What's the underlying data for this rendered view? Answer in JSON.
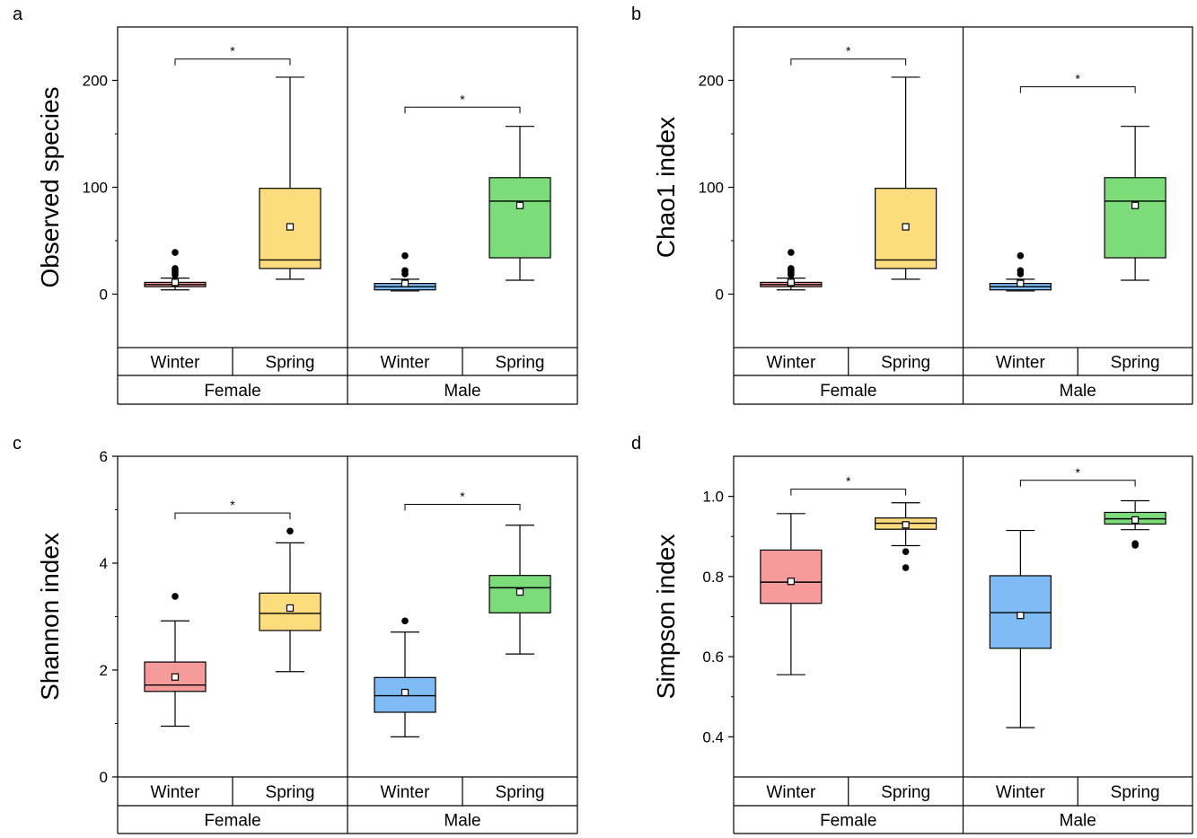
{
  "colors": {
    "female_winter": "#f79a9a",
    "female_spring": "#fddc7e",
    "male_winter": "#7fbcf6",
    "male_spring": "#7ddc7a",
    "line": "#000000"
  },
  "chart_data": [
    {
      "panel": "a",
      "type": "box",
      "ylabel": "Observed species",
      "ylim": [
        -50,
        250
      ],
      "yticks": [
        "0",
        "100",
        "200"
      ],
      "ytick_values": [
        0,
        100,
        200
      ],
      "groups": [
        "Female",
        "Male"
      ],
      "categories": [
        "Winter",
        "Spring",
        "Winter",
        "Spring"
      ],
      "boxes": [
        {
          "group": "Female",
          "season": "Winter",
          "color": "female_winter",
          "min": 4,
          "q1": 7,
          "median": 9,
          "q3": 11,
          "max": 15,
          "mean": 11,
          "outliers": [
            18,
            20,
            22,
            24,
            39
          ]
        },
        {
          "group": "Female",
          "season": "Spring",
          "color": "female_spring",
          "min": 14,
          "q1": 24,
          "median": 32,
          "q3": 99,
          "max": 203,
          "mean": 63,
          "outliers": []
        },
        {
          "group": "Male",
          "season": "Winter",
          "color": "male_winter",
          "min": 3,
          "q1": 4,
          "median": 7,
          "q3": 10,
          "max": 14,
          "mean": 10,
          "outliers": [
            19,
            22,
            36
          ]
        },
        {
          "group": "Male",
          "season": "Spring",
          "color": "male_spring",
          "min": 13,
          "q1": 34,
          "median": 87,
          "q3": 109,
          "max": 157,
          "mean": 83,
          "outliers": []
        }
      ],
      "significance": [
        {
          "from": 0,
          "to": 1,
          "y": 220,
          "label": "*"
        },
        {
          "from": 2,
          "to": 3,
          "y": 175,
          "label": "*"
        }
      ]
    },
    {
      "panel": "b",
      "type": "box",
      "ylabel": "Chao1 index",
      "ylim": [
        -50,
        250
      ],
      "yticks": [
        "0",
        "100",
        "200"
      ],
      "ytick_values": [
        0,
        100,
        200
      ],
      "groups": [
        "Female",
        "Male"
      ],
      "categories": [
        "Winter",
        "Spring",
        "Winter",
        "Spring"
      ],
      "boxes": [
        {
          "group": "Female",
          "season": "Winter",
          "color": "female_winter",
          "min": 4,
          "q1": 7,
          "median": 9,
          "q3": 11,
          "max": 15,
          "mean": 11,
          "outliers": [
            18,
            20,
            22,
            24,
            39
          ]
        },
        {
          "group": "Female",
          "season": "Spring",
          "color": "female_spring",
          "min": 14,
          "q1": 24,
          "median": 32,
          "q3": 99,
          "max": 203,
          "mean": 63,
          "outliers": []
        },
        {
          "group": "Male",
          "season": "Winter",
          "color": "male_winter",
          "min": 3,
          "q1": 4,
          "median": 7,
          "q3": 10,
          "max": 14,
          "mean": 10,
          "outliers": [
            19,
            22,
            36
          ]
        },
        {
          "group": "Male",
          "season": "Spring",
          "color": "male_spring",
          "min": 13,
          "q1": 34,
          "median": 87,
          "q3": 109,
          "max": 157,
          "mean": 83,
          "outliers": []
        }
      ],
      "significance": [
        {
          "from": 0,
          "to": 1,
          "y": 220,
          "label": "*"
        },
        {
          "from": 2,
          "to": 3,
          "y": 194,
          "label": "*"
        }
      ]
    },
    {
      "panel": "c",
      "type": "box",
      "ylabel": "Shannon index",
      "ylim": [
        0,
        6
      ],
      "yticks": [
        "0",
        "2",
        "4",
        "6"
      ],
      "ytick_values": [
        0,
        2,
        4,
        6
      ],
      "groups": [
        "Female",
        "Male"
      ],
      "categories": [
        "Winter",
        "Spring",
        "Winter",
        "Spring"
      ],
      "boxes": [
        {
          "group": "Female",
          "season": "Winter",
          "color": "female_winter",
          "min": 0.95,
          "q1": 1.6,
          "median": 1.72,
          "q3": 2.15,
          "max": 2.92,
          "mean": 1.87,
          "outliers": [
            3.38
          ]
        },
        {
          "group": "Female",
          "season": "Spring",
          "color": "female_spring",
          "min": 1.97,
          "q1": 2.74,
          "median": 3.06,
          "q3": 3.44,
          "max": 4.38,
          "mean": 3.16,
          "outliers": [
            4.6
          ]
        },
        {
          "group": "Male",
          "season": "Winter",
          "color": "male_winter",
          "min": 0.75,
          "q1": 1.21,
          "median": 1.52,
          "q3": 1.86,
          "max": 2.71,
          "mean": 1.58,
          "outliers": [
            2.92
          ]
        },
        {
          "group": "Male",
          "season": "Spring",
          "color": "male_spring",
          "min": 2.3,
          "q1": 3.07,
          "median": 3.54,
          "q3": 3.77,
          "max": 4.71,
          "mean": 3.46,
          "outliers": []
        }
      ],
      "significance": [
        {
          "from": 0,
          "to": 1,
          "y": 4.94,
          "label": "*"
        },
        {
          "from": 2,
          "to": 3,
          "y": 5.1,
          "label": "*"
        }
      ]
    },
    {
      "panel": "d",
      "type": "box",
      "ylabel": "Simpson index",
      "ylim": [
        0.3,
        1.1
      ],
      "yticks": [
        "0.4",
        "0.6",
        "0.8",
        "1.0"
      ],
      "ytick_values": [
        0.4,
        0.6,
        0.8,
        1.0
      ],
      "groups": [
        "Female",
        "Male"
      ],
      "categories": [
        "Winter",
        "Spring",
        "Winter",
        "Spring"
      ],
      "boxes": [
        {
          "group": "Female",
          "season": "Winter",
          "color": "female_winter",
          "min": 0.555,
          "q1": 0.733,
          "median": 0.786,
          "q3": 0.866,
          "max": 0.957,
          "mean": 0.788,
          "outliers": []
        },
        {
          "group": "Female",
          "season": "Spring",
          "color": "female_spring",
          "min": 0.877,
          "q1": 0.918,
          "median": 0.933,
          "q3": 0.946,
          "max": 0.984,
          "mean": 0.929,
          "outliers": [
            0.862,
            0.822
          ]
        },
        {
          "group": "Male",
          "season": "Winter",
          "color": "male_winter",
          "min": 0.423,
          "q1": 0.621,
          "median": 0.71,
          "q3": 0.802,
          "max": 0.915,
          "mean": 0.703,
          "outliers": []
        },
        {
          "group": "Male",
          "season": "Spring",
          "color": "male_spring",
          "min": 0.917,
          "q1": 0.931,
          "median": 0.944,
          "q3": 0.96,
          "max": 0.989,
          "mean": 0.941,
          "outliers": [
            0.882,
            0.878
          ]
        }
      ],
      "significance": [
        {
          "from": 0,
          "to": 1,
          "y": 1.018,
          "label": "*"
        },
        {
          "from": 2,
          "to": 3,
          "y": 1.04,
          "label": "*"
        }
      ]
    }
  ]
}
